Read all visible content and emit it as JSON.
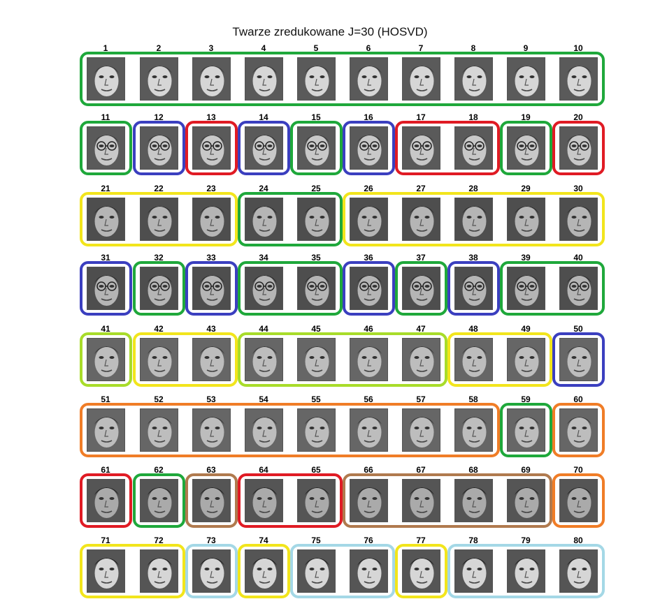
{
  "title": "Twarze zredukowane J=30 (HOSVD)",
  "colors": {
    "green": "#1fa83b",
    "blue": "#3b3fbf",
    "red": "#e01b24",
    "yellow": "#f2e51c",
    "lime": "#a8dc2a",
    "orange": "#f07d27",
    "brown": "#b07a4e",
    "lightblue": "#a4d8e6"
  },
  "faces": [
    {
      "label": "1"
    },
    {
      "label": "2"
    },
    {
      "label": "3"
    },
    {
      "label": "4"
    },
    {
      "label": "5"
    },
    {
      "label": "6"
    },
    {
      "label": "7"
    },
    {
      "label": "8"
    },
    {
      "label": "9"
    },
    {
      "label": "10"
    },
    {
      "label": "11"
    },
    {
      "label": "12"
    },
    {
      "label": "13"
    },
    {
      "label": "14"
    },
    {
      "label": "15"
    },
    {
      "label": "16"
    },
    {
      "label": "17"
    },
    {
      "label": "18"
    },
    {
      "label": "19"
    },
    {
      "label": "20"
    },
    {
      "label": "21"
    },
    {
      "label": "22"
    },
    {
      "label": "23"
    },
    {
      "label": "24"
    },
    {
      "label": "25"
    },
    {
      "label": "26"
    },
    {
      "label": "27"
    },
    {
      "label": "28"
    },
    {
      "label": "29"
    },
    {
      "label": "30"
    },
    {
      "label": "31"
    },
    {
      "label": "32"
    },
    {
      "label": "33"
    },
    {
      "label": "34"
    },
    {
      "label": "35"
    },
    {
      "label": "36"
    },
    {
      "label": "37"
    },
    {
      "label": "38"
    },
    {
      "label": "39"
    },
    {
      "label": "40"
    },
    {
      "label": "41"
    },
    {
      "label": "42"
    },
    {
      "label": "43"
    },
    {
      "label": "44"
    },
    {
      "label": "45"
    },
    {
      "label": "46"
    },
    {
      "label": "47"
    },
    {
      "label": "48"
    },
    {
      "label": "49"
    },
    {
      "label": "50"
    },
    {
      "label": "51"
    },
    {
      "label": "52"
    },
    {
      "label": "53"
    },
    {
      "label": "54"
    },
    {
      "label": "55"
    },
    {
      "label": "56"
    },
    {
      "label": "57"
    },
    {
      "label": "58"
    },
    {
      "label": "59"
    },
    {
      "label": "60"
    },
    {
      "label": "61"
    },
    {
      "label": "62"
    },
    {
      "label": "63"
    },
    {
      "label": "64"
    },
    {
      "label": "65"
    },
    {
      "label": "66"
    },
    {
      "label": "67"
    },
    {
      "label": "68"
    },
    {
      "label": "69"
    },
    {
      "label": "70"
    },
    {
      "label": "71"
    },
    {
      "label": "72"
    },
    {
      "label": "73"
    },
    {
      "label": "74"
    },
    {
      "label": "75"
    },
    {
      "label": "76"
    },
    {
      "label": "77"
    },
    {
      "label": "78"
    },
    {
      "label": "79"
    },
    {
      "label": "80"
    }
  ],
  "clusters": [
    {
      "row": 1,
      "from": 1,
      "to": 10,
      "color": "green"
    },
    {
      "row": 2,
      "from": 1,
      "to": 1,
      "color": "green"
    },
    {
      "row": 2,
      "from": 2,
      "to": 2,
      "color": "blue"
    },
    {
      "row": 2,
      "from": 3,
      "to": 3,
      "color": "red"
    },
    {
      "row": 2,
      "from": 4,
      "to": 4,
      "color": "blue"
    },
    {
      "row": 2,
      "from": 5,
      "to": 5,
      "color": "green"
    },
    {
      "row": 2,
      "from": 6,
      "to": 6,
      "color": "blue"
    },
    {
      "row": 2,
      "from": 7,
      "to": 8,
      "color": "red"
    },
    {
      "row": 2,
      "from": 9,
      "to": 9,
      "color": "green"
    },
    {
      "row": 2,
      "from": 10,
      "to": 10,
      "color": "red"
    },
    {
      "row": 3,
      "from": 1,
      "to": 3,
      "color": "yellow"
    },
    {
      "row": 3,
      "from": 4,
      "to": 5,
      "color": "green"
    },
    {
      "row": 3,
      "from": 6,
      "to": 10,
      "color": "yellow"
    },
    {
      "row": 4,
      "from": 1,
      "to": 1,
      "color": "blue"
    },
    {
      "row": 4,
      "from": 2,
      "to": 2,
      "color": "green"
    },
    {
      "row": 4,
      "from": 3,
      "to": 3,
      "color": "blue"
    },
    {
      "row": 4,
      "from": 4,
      "to": 5,
      "color": "green"
    },
    {
      "row": 4,
      "from": 6,
      "to": 6,
      "color": "blue"
    },
    {
      "row": 4,
      "from": 7,
      "to": 7,
      "color": "green"
    },
    {
      "row": 4,
      "from": 8,
      "to": 8,
      "color": "blue"
    },
    {
      "row": 4,
      "from": 9,
      "to": 10,
      "color": "green"
    },
    {
      "row": 5,
      "from": 1,
      "to": 1,
      "color": "lime"
    },
    {
      "row": 5,
      "from": 2,
      "to": 3,
      "color": "yellow"
    },
    {
      "row": 5,
      "from": 4,
      "to": 7,
      "color": "lime"
    },
    {
      "row": 5,
      "from": 8,
      "to": 9,
      "color": "yellow"
    },
    {
      "row": 5,
      "from": 10,
      "to": 10,
      "color": "blue"
    },
    {
      "row": 6,
      "from": 1,
      "to": 8,
      "color": "orange"
    },
    {
      "row": 6,
      "from": 9,
      "to": 9,
      "color": "green"
    },
    {
      "row": 6,
      "from": 10,
      "to": 10,
      "color": "orange"
    },
    {
      "row": 7,
      "from": 1,
      "to": 1,
      "color": "red"
    },
    {
      "row": 7,
      "from": 2,
      "to": 2,
      "color": "green"
    },
    {
      "row": 7,
      "from": 3,
      "to": 3,
      "color": "brown"
    },
    {
      "row": 7,
      "from": 4,
      "to": 5,
      "color": "red"
    },
    {
      "row": 7,
      "from": 6,
      "to": 9,
      "color": "brown"
    },
    {
      "row": 7,
      "from": 10,
      "to": 10,
      "color": "orange"
    },
    {
      "row": 8,
      "from": 1,
      "to": 2,
      "color": "yellow"
    },
    {
      "row": 8,
      "from": 3,
      "to": 3,
      "color": "lightblue"
    },
    {
      "row": 8,
      "from": 4,
      "to": 4,
      "color": "yellow"
    },
    {
      "row": 8,
      "from": 5,
      "to": 6,
      "color": "lightblue"
    },
    {
      "row": 8,
      "from": 7,
      "to": 7,
      "color": "yellow"
    },
    {
      "row": 8,
      "from": 8,
      "to": 10,
      "color": "lightblue"
    }
  ]
}
